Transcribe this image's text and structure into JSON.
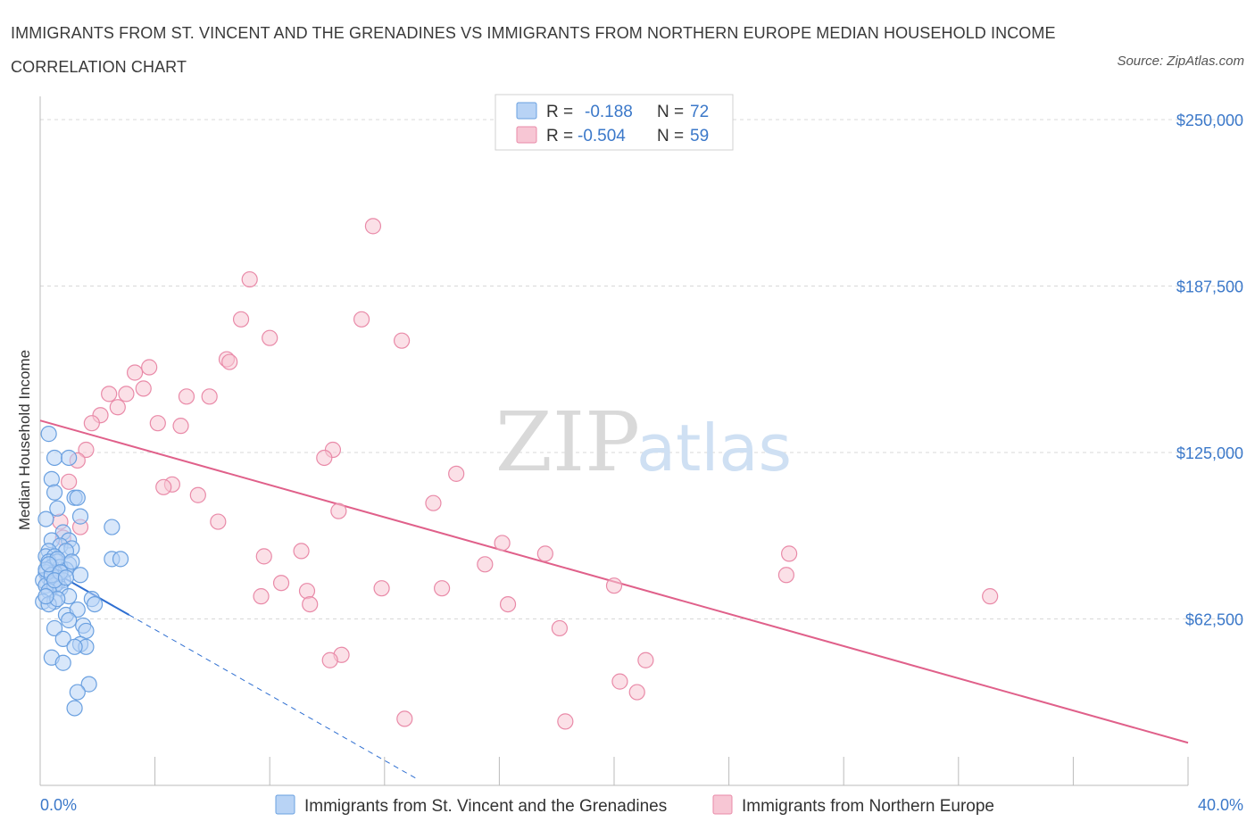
{
  "title": "IMMIGRANTS FROM ST. VINCENT AND THE GRENADINES VS IMMIGRANTS FROM NORTHERN EUROPE MEDIAN HOUSEHOLD INCOME CORRELATION CHART",
  "source": "Source: ZipAtlas.com",
  "colors": {
    "blue": "#6aa0e0",
    "blue_fill": "#b8d3f5",
    "blue_line": "#2f6fd1",
    "pink": "#e98aa8",
    "pink_fill": "#f7c6d4",
    "pink_line": "#e0608a",
    "tick": "#3b78c9",
    "grid": "#d8d8d8"
  },
  "legend": {
    "r_label": "R =",
    "n_label": "N =",
    "rows": [
      {
        "r": "-0.188",
        "n": "72",
        "series": "blue"
      },
      {
        "r": "-0.504",
        "n": "59",
        "series": "pink"
      }
    ]
  },
  "chart_data": {
    "type": "scatter",
    "title": "IMMIGRANTS FROM ST. VINCENT AND THE GRENADINES VS IMMIGRANTS FROM NORTHERN EUROPE MEDIAN HOUSEHOLD INCOME CORRELATION CHART",
    "xlabel": "",
    "ylabel": "Median Household Income",
    "xlim": [
      0,
      40
    ],
    "ylim": [
      0,
      250000
    ],
    "x_tick_labels": [
      "0.0%",
      "40.0%"
    ],
    "y_ticks": [
      62500,
      125000,
      187500,
      250000
    ],
    "y_tick_labels": [
      "$62,500",
      "$125,000",
      "$187,500",
      "$250,000"
    ],
    "watermark": {
      "part1": "ZIP",
      "part2": "atlas"
    },
    "series": [
      {
        "name": "Immigrants from St. Vincent and the Grenadines",
        "color": "blue",
        "trend": {
          "x0": 0,
          "y0": 83000,
          "x1": 3.1,
          "y1": 64000,
          "dash_x1": 13.2,
          "dash_y1": 2000
        },
        "points": [
          [
            0.3,
            132000
          ],
          [
            0.5,
            123000
          ],
          [
            1.0,
            123000
          ],
          [
            0.4,
            115000
          ],
          [
            0.5,
            110000
          ],
          [
            1.2,
            108000
          ],
          [
            1.3,
            108000
          ],
          [
            0.6,
            104000
          ],
          [
            0.2,
            100000
          ],
          [
            1.4,
            101000
          ],
          [
            2.5,
            97000
          ],
          [
            0.8,
            95000
          ],
          [
            0.4,
            92000
          ],
          [
            1.0,
            92000
          ],
          [
            0.7,
            90000
          ],
          [
            1.1,
            89000
          ],
          [
            0.3,
            88000
          ],
          [
            0.9,
            88000
          ],
          [
            0.2,
            86000
          ],
          [
            0.5,
            86000
          ],
          [
            2.5,
            85000
          ],
          [
            2.8,
            85000
          ],
          [
            0.3,
            84000
          ],
          [
            0.6,
            84000
          ],
          [
            1.0,
            83000
          ],
          [
            0.4,
            82000
          ],
          [
            0.7,
            82000
          ],
          [
            0.9,
            81000
          ],
          [
            0.2,
            80000
          ],
          [
            0.5,
            80000
          ],
          [
            1.4,
            79000
          ],
          [
            0.3,
            78000
          ],
          [
            0.6,
            78000
          ],
          [
            0.8,
            77000
          ],
          [
            0.1,
            77000
          ],
          [
            0.4,
            76000
          ],
          [
            0.6,
            76000
          ],
          [
            0.2,
            75000
          ],
          [
            0.5,
            75000
          ],
          [
            0.7,
            74000
          ],
          [
            0.3,
            73000
          ],
          [
            1.0,
            71000
          ],
          [
            1.8,
            70000
          ],
          [
            0.1,
            69000
          ],
          [
            0.5,
            69000
          ],
          [
            1.9,
            68000
          ],
          [
            0.3,
            68000
          ],
          [
            0.6,
            70000
          ],
          [
            0.9,
            64000
          ],
          [
            1.3,
            66000
          ],
          [
            1.0,
            62000
          ],
          [
            1.5,
            60000
          ],
          [
            0.5,
            59000
          ],
          [
            1.6,
            58000
          ],
          [
            0.8,
            55000
          ],
          [
            1.4,
            53000
          ],
          [
            1.6,
            52000
          ],
          [
            1.2,
            52000
          ],
          [
            0.4,
            48000
          ],
          [
            0.8,
            46000
          ],
          [
            1.7,
            38000
          ],
          [
            1.3,
            35000
          ],
          [
            1.2,
            29000
          ],
          [
            0.2,
            81000
          ],
          [
            0.4,
            79000
          ],
          [
            0.6,
            85000
          ],
          [
            0.3,
            83000
          ],
          [
            0.7,
            80000
          ],
          [
            0.5,
            77000
          ],
          [
            1.1,
            84000
          ],
          [
            0.9,
            78000
          ],
          [
            0.2,
            71000
          ]
        ]
      },
      {
        "name": "Immigrants from Northern Europe",
        "color": "pink",
        "trend": {
          "x0": 0,
          "y0": 137000,
          "x1": 40,
          "y1": 16000
        },
        "points": [
          [
            11.6,
            210000
          ],
          [
            7.3,
            190000
          ],
          [
            7.0,
            175000
          ],
          [
            11.2,
            175000
          ],
          [
            8.0,
            168000
          ],
          [
            12.6,
            167000
          ],
          [
            6.5,
            160000
          ],
          [
            6.6,
            159000
          ],
          [
            3.8,
            157000
          ],
          [
            3.3,
            155000
          ],
          [
            3.6,
            149000
          ],
          [
            2.4,
            147000
          ],
          [
            5.1,
            146000
          ],
          [
            5.9,
            146000
          ],
          [
            3.0,
            147000
          ],
          [
            2.7,
            142000
          ],
          [
            2.1,
            139000
          ],
          [
            1.8,
            136000
          ],
          [
            4.1,
            136000
          ],
          [
            4.9,
            135000
          ],
          [
            1.6,
            126000
          ],
          [
            10.2,
            126000
          ],
          [
            9.9,
            123000
          ],
          [
            1.3,
            122000
          ],
          [
            14.5,
            117000
          ],
          [
            1.0,
            114000
          ],
          [
            4.6,
            113000
          ],
          [
            4.3,
            112000
          ],
          [
            5.5,
            109000
          ],
          [
            13.7,
            106000
          ],
          [
            10.4,
            103000
          ],
          [
            6.2,
            99000
          ],
          [
            0.7,
            99000
          ],
          [
            16.1,
            91000
          ],
          [
            9.1,
            88000
          ],
          [
            17.6,
            87000
          ],
          [
            26.1,
            87000
          ],
          [
            7.8,
            86000
          ],
          [
            15.5,
            83000
          ],
          [
            26.0,
            79000
          ],
          [
            8.4,
            76000
          ],
          [
            11.9,
            74000
          ],
          [
            14.0,
            74000
          ],
          [
            20.0,
            75000
          ],
          [
            9.3,
            73000
          ],
          [
            7.7,
            71000
          ],
          [
            33.1,
            71000
          ],
          [
            9.4,
            68000
          ],
          [
            16.3,
            68000
          ],
          [
            18.1,
            59000
          ],
          [
            10.5,
            49000
          ],
          [
            10.1,
            47000
          ],
          [
            21.1,
            47000
          ],
          [
            20.2,
            39000
          ],
          [
            20.8,
            35000
          ],
          [
            12.7,
            25000
          ],
          [
            18.3,
            24000
          ],
          [
            0.8,
            93000
          ],
          [
            1.4,
            97000
          ]
        ]
      }
    ]
  },
  "bottom_legend": [
    {
      "label": "Immigrants from St. Vincent and the Grenadines",
      "series": "blue"
    },
    {
      "label": "Immigrants from Northern Europe",
      "series": "pink"
    }
  ]
}
